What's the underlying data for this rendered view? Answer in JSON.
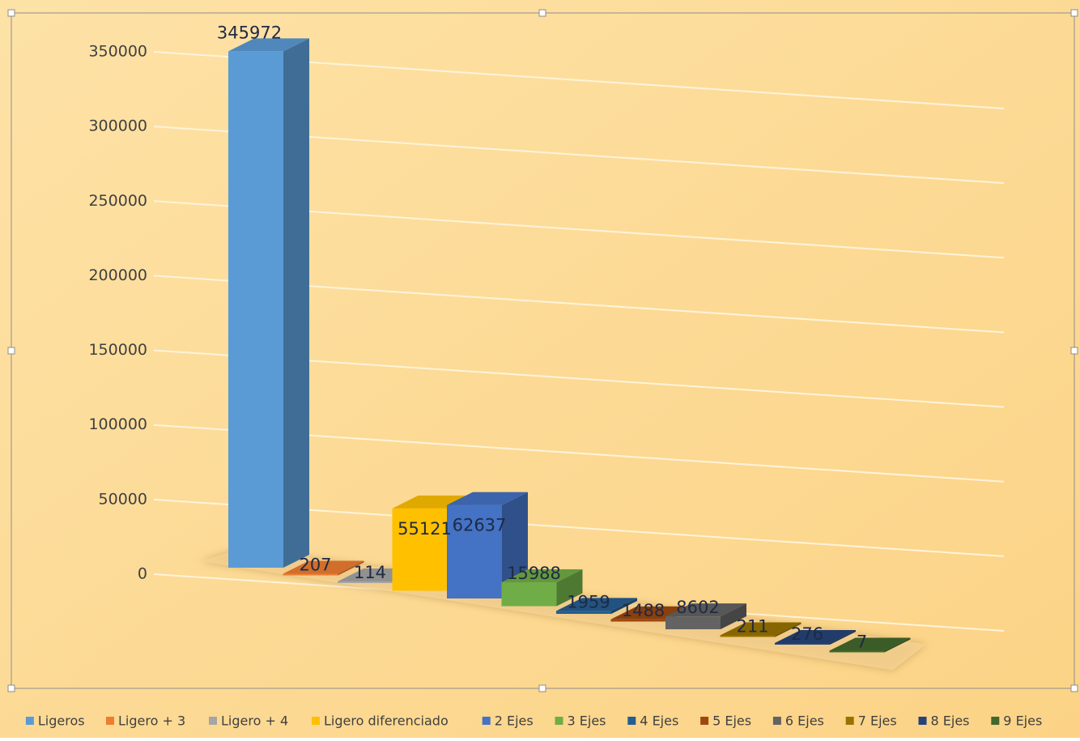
{
  "chart_data": {
    "type": "bar",
    "categories": [
      "Ligeros",
      "Ligero + 3",
      "Ligero + 4",
      "Ligero diferenciado",
      "2 Ejes",
      "3 Ejes",
      "4 Ejes",
      "5 Ejes",
      "6 Ejes",
      "7 Ejes",
      "8 Ejes",
      "9 Ejes"
    ],
    "values": [
      345972,
      207,
      114,
      55121,
      62637,
      15988,
      1959,
      1488,
      8602,
      211,
      276,
      7
    ],
    "data_labels": [
      "345972",
      "207",
      "114",
      "55121",
      "62637",
      "15988",
      "1959",
      "1488",
      "8602",
      "211",
      "276",
      "7"
    ],
    "series": [
      {
        "name": "Ligeros",
        "value": 345972,
        "color": "#5b9bd5"
      },
      {
        "name": "Ligero + 3",
        "value": 207,
        "color": "#ed7d31"
      },
      {
        "name": "Ligero + 4",
        "value": 114,
        "color": "#a5a5a5"
      },
      {
        "name": "Ligero diferenciado",
        "value": 55121,
        "color": "#ffc000"
      },
      {
        "name": "2 Ejes",
        "value": 62637,
        "color": "#4472c4"
      },
      {
        "name": "3 Ejes",
        "value": 15988,
        "color": "#70ad47"
      },
      {
        "name": "4 Ejes",
        "value": 1959,
        "color": "#255e91"
      },
      {
        "name": "5 Ejes",
        "value": 1488,
        "color": "#9e480e"
      },
      {
        "name": "6 Ejes",
        "value": 8602,
        "color": "#636363"
      },
      {
        "name": "7 Ejes",
        "value": 211,
        "color": "#997300"
      },
      {
        "name": "8 Ejes",
        "value": 276,
        "color": "#264478"
      },
      {
        "name": "9 Ejes",
        "value": 7,
        "color": "#43682b"
      }
    ],
    "yticks": [
      "0",
      "50000",
      "100000",
      "150000",
      "200000",
      "250000",
      "300000",
      "350000"
    ],
    "ylim": [
      0,
      350000
    ],
    "grid": true,
    "legend_position": "bottom",
    "title": "",
    "xlabel": "",
    "ylabel": "",
    "background_color": "#fddc96",
    "gridline_color": "#fff3d9"
  }
}
